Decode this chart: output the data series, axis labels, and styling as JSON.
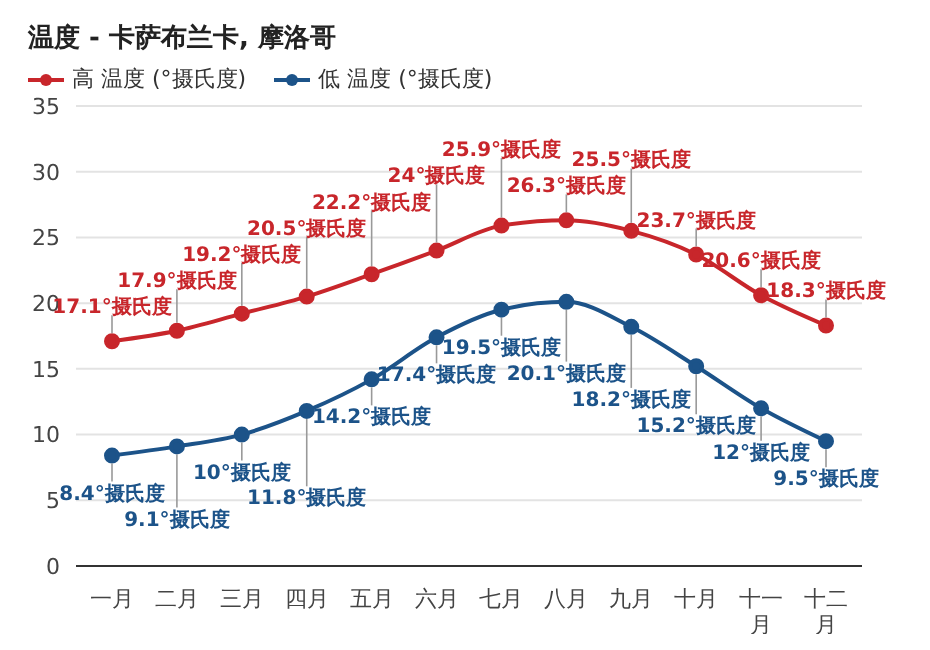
{
  "chart_data": {
    "type": "line",
    "title": "温度 - 卡萨布兰卡, 摩洛哥",
    "categories": [
      "一月",
      "二月",
      "三月",
      "四月",
      "五月",
      "六月",
      "七月",
      "八月",
      "九月",
      "十月",
      "十一月",
      "十二月"
    ],
    "series": [
      {
        "name": "高 温度 (°摄氏度)",
        "color": "#c8262b",
        "values": [
          17.1,
          17.9,
          19.2,
          20.5,
          22.2,
          24,
          25.9,
          26.3,
          25.5,
          23.7,
          20.6,
          18.3
        ],
        "value_labels": [
          "17.1°摄氏度",
          "17.9°摄氏度",
          "19.2°摄氏度",
          "20.5°摄氏度",
          "22.2°摄氏度",
          "24°摄氏度",
          "25.9°摄氏度",
          "26.3°摄氏度",
          "25.5°摄氏度",
          "23.7°摄氏度",
          "20.6°摄氏度",
          "18.3°摄氏度"
        ]
      },
      {
        "name": "低 温度 (°摄氏度)",
        "color": "#1c5389",
        "values": [
          8.4,
          9.1,
          10,
          11.8,
          14.2,
          17.4,
          19.5,
          20.1,
          18.2,
          15.2,
          12,
          9.5
        ],
        "value_labels": [
          "8.4°摄氏度",
          "9.1°摄氏度",
          "10°摄氏度",
          "11.8°摄氏度",
          "14.2°摄氏度",
          "17.4°摄氏度",
          "19.5°摄氏度",
          "20.1°摄氏度",
          "18.2°摄氏度",
          "15.2°摄氏度",
          "12°摄氏度",
          "9.5°摄氏度"
        ]
      }
    ],
    "ylim": [
      0,
      35
    ],
    "yticks": [
      0,
      5,
      10,
      15,
      20,
      25,
      30,
      35
    ],
    "grid": "y",
    "legend": "top left",
    "marker": "circle",
    "line_style": "solid"
  }
}
